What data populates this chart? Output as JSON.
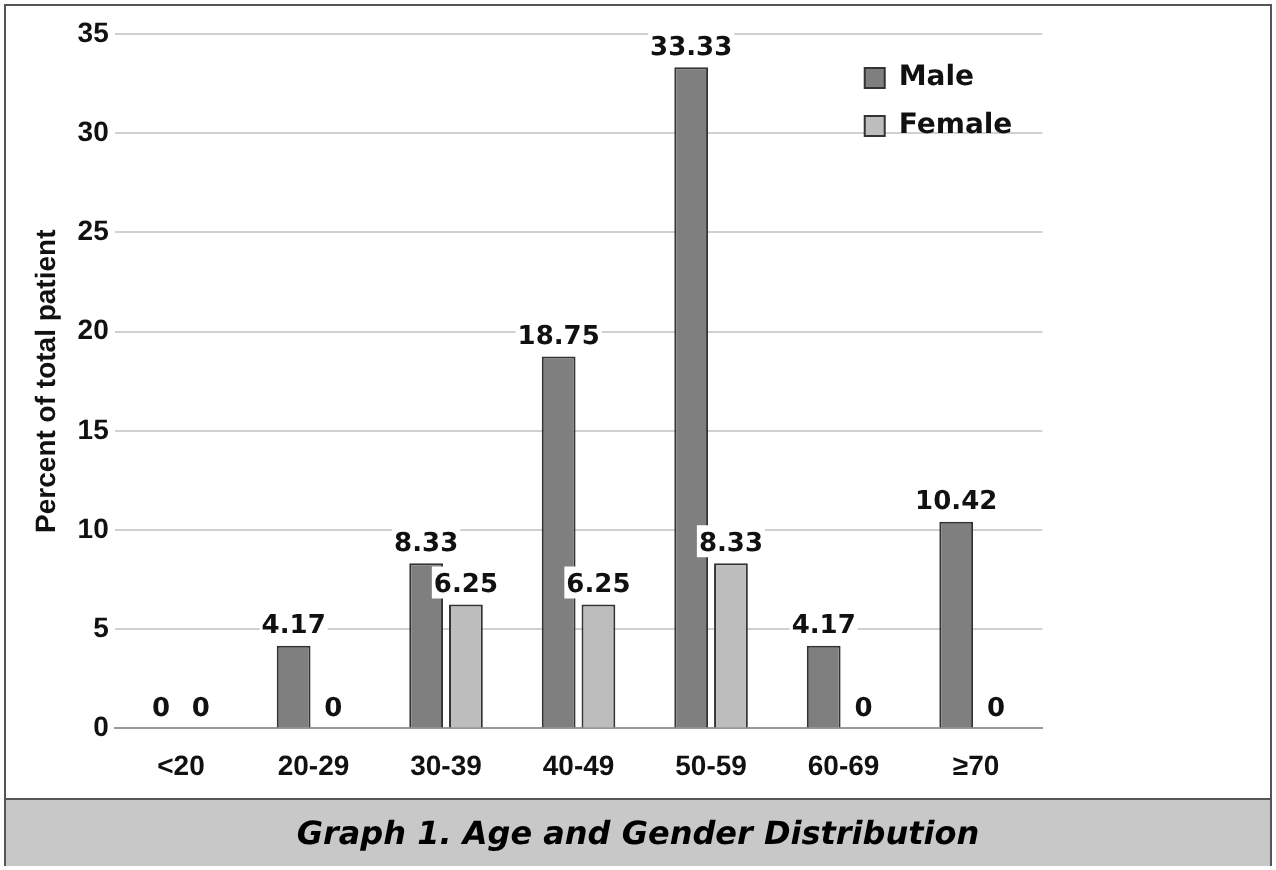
{
  "chart_data": {
    "type": "bar",
    "title": "Graph 1. Age and Gender Distribution",
    "ylabel": "Percent of total patient",
    "categories": [
      "<20",
      "20-29",
      "30-39",
      "40-49",
      "50-59",
      "60-69",
      "≥70"
    ],
    "series": [
      {
        "name": "Male",
        "color": "#7f7f7f",
        "values": [
          0,
          4.17,
          8.33,
          18.75,
          33.33,
          4.17,
          10.42
        ]
      },
      {
        "name": "Female",
        "color": "#bdbdbd",
        "values": [
          0,
          0,
          6.25,
          6.25,
          8.33,
          0,
          0
        ]
      }
    ],
    "ylim": [
      0,
      35
    ],
    "yticks": [
      0,
      5,
      10,
      15,
      20,
      25,
      30,
      35
    ],
    "grid": "y",
    "legend": "top right",
    "data_labels": true
  }
}
